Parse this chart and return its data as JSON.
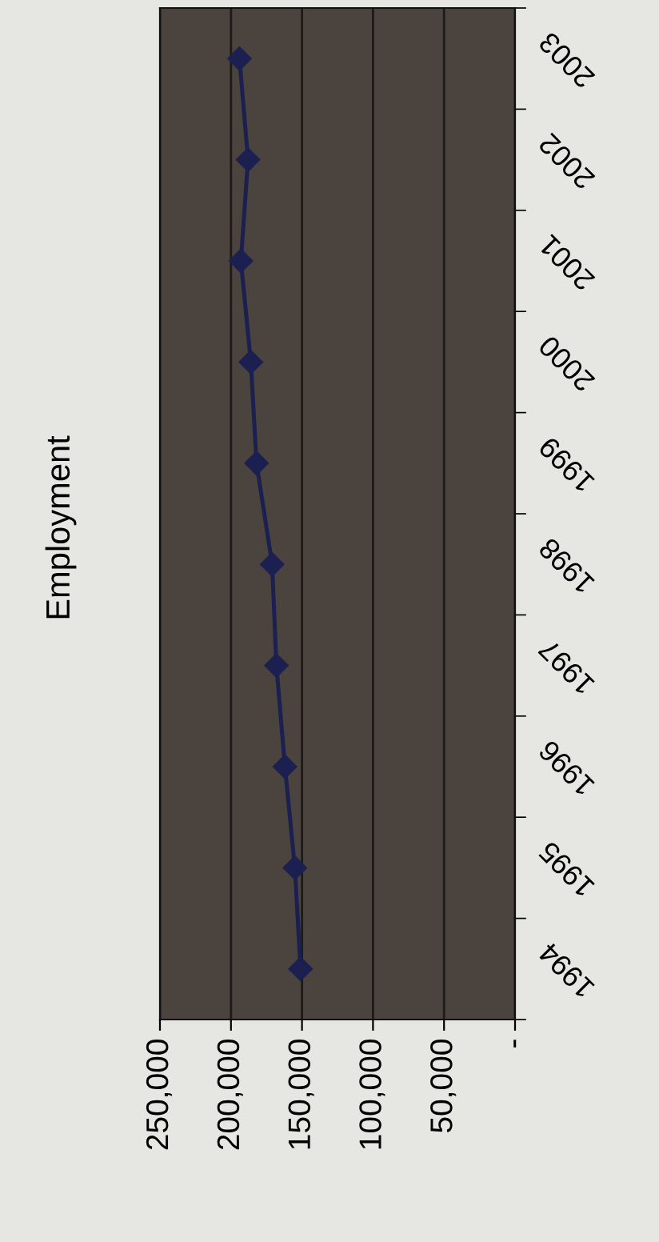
{
  "chart_data": {
    "type": "line",
    "title": "Employment",
    "orientation": "horizontal",
    "categories": [
      "2003",
      "2002",
      "2001",
      "2000",
      "1999",
      "1998",
      "1997",
      "1996",
      "1995",
      "1994"
    ],
    "series": [
      {
        "color": "#1c2050",
        "values": [
          194000,
          188000,
          193000,
          186000,
          182000,
          171000,
          168000,
          162000,
          155000,
          151000
        ]
      }
    ],
    "xlim": [
      250000,
      0
    ],
    "xticks": [
      {
        "value": 250000,
        "label": "250,000"
      },
      {
        "value": 200000,
        "label": "200,000"
      },
      {
        "value": 150000,
        "label": "150,000"
      },
      {
        "value": 100000,
        "label": "100,000"
      },
      {
        "value": 50000,
        "label": "50,000"
      },
      {
        "value": 0,
        "label": "-"
      }
    ],
    "grid": "x",
    "marker": "diamond",
    "line_style": "solid"
  }
}
